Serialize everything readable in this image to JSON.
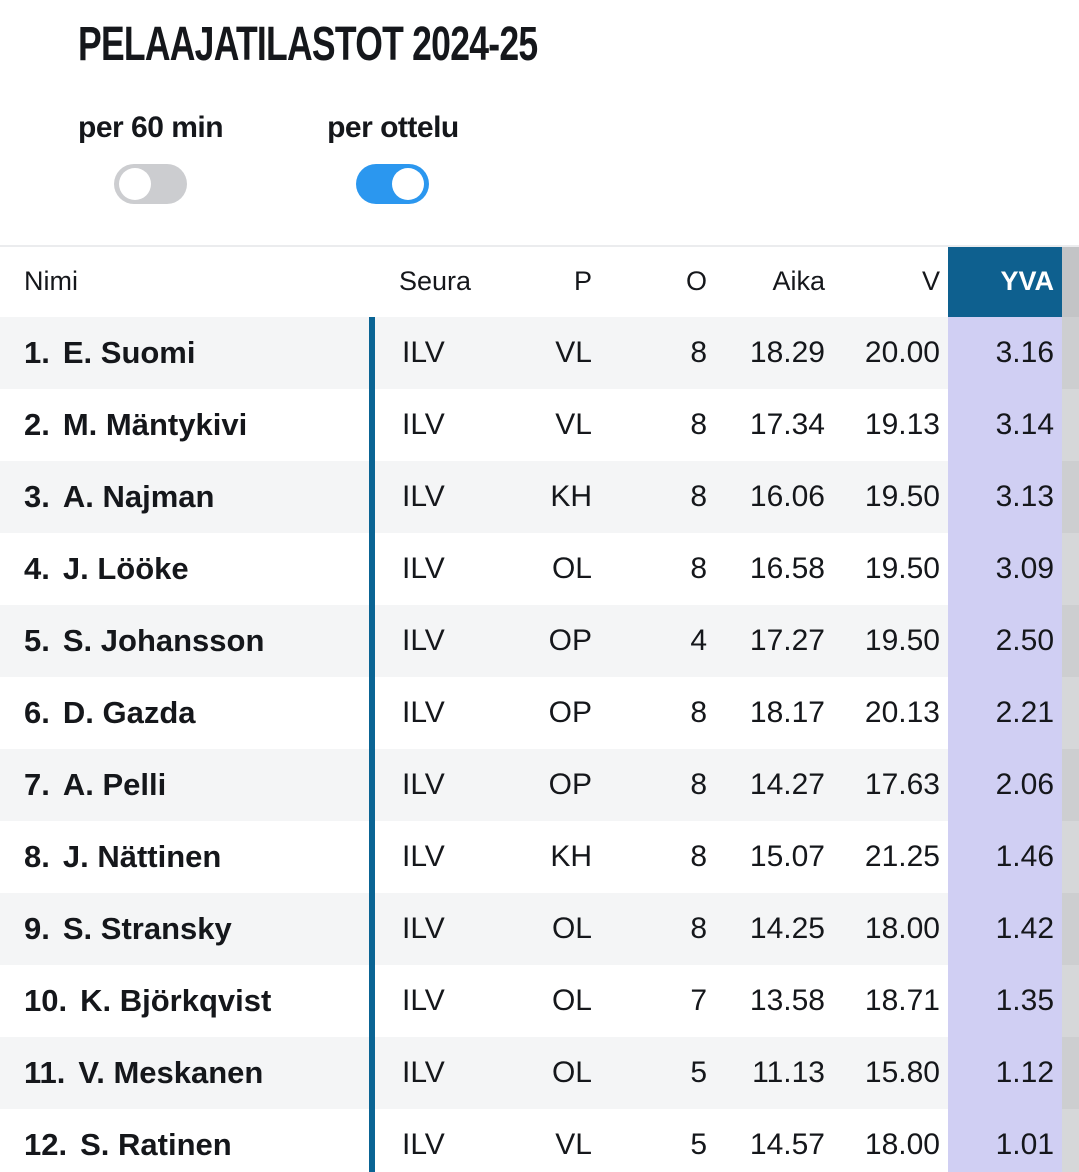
{
  "title": "PELAAJATILASTOT 2024-25",
  "toggles": [
    {
      "label": "per 60 min",
      "state": "off"
    },
    {
      "label": "per ottelu",
      "state": "on"
    }
  ],
  "table": {
    "columns": [
      "Nimi",
      "Seura",
      "P",
      "O",
      "Aika",
      "V",
      "YVA"
    ],
    "highlight_column": "YVA",
    "rows": [
      {
        "rank": "1.",
        "name": "E. Suomi",
        "seura": "ILV",
        "p": "VL",
        "o": "8",
        "aika": "18.29",
        "v": "20.00",
        "yva": "3.16"
      },
      {
        "rank": "2.",
        "name": "M. Mäntykivi",
        "seura": "ILV",
        "p": "VL",
        "o": "8",
        "aika": "17.34",
        "v": "19.13",
        "yva": "3.14"
      },
      {
        "rank": "3.",
        "name": "A. Najman",
        "seura": "ILV",
        "p": "KH",
        "o": "8",
        "aika": "16.06",
        "v": "19.50",
        "yva": "3.13"
      },
      {
        "rank": "4.",
        "name": "J. Lööke",
        "seura": "ILV",
        "p": "OL",
        "o": "8",
        "aika": "16.58",
        "v": "19.50",
        "yva": "3.09"
      },
      {
        "rank": "5.",
        "name": "S. Johansson",
        "seura": "ILV",
        "p": "OP",
        "o": "4",
        "aika": "17.27",
        "v": "19.50",
        "yva": "2.50"
      },
      {
        "rank": "6.",
        "name": "D. Gazda",
        "seura": "ILV",
        "p": "OP",
        "o": "8",
        "aika": "18.17",
        "v": "20.13",
        "yva": "2.21"
      },
      {
        "rank": "7.",
        "name": "A. Pelli",
        "seura": "ILV",
        "p": "OP",
        "o": "8",
        "aika": "14.27",
        "v": "17.63",
        "yva": "2.06"
      },
      {
        "rank": "8.",
        "name": "J. Nättinen",
        "seura": "ILV",
        "p": "KH",
        "o": "8",
        "aika": "15.07",
        "v": "21.25",
        "yva": "1.46"
      },
      {
        "rank": "9.",
        "name": "S. Stransky",
        "seura": "ILV",
        "p": "OL",
        "o": "8",
        "aika": "14.25",
        "v": "18.00",
        "yva": "1.42"
      },
      {
        "rank": "10.",
        "name": "K. Björkqvist",
        "seura": "ILV",
        "p": "OL",
        "o": "7",
        "aika": "13.58",
        "v": "18.71",
        "yva": "1.35"
      },
      {
        "rank": "11.",
        "name": "V. Meskanen",
        "seura": "ILV",
        "p": "OL",
        "o": "5",
        "aika": "11.13",
        "v": "15.80",
        "yva": "1.12"
      },
      {
        "rank": "12.",
        "name": "S. Ratinen",
        "seura": "ILV",
        "p": "VL",
        "o": "5",
        "aika": "14.57",
        "v": "18.00",
        "yva": "1.01"
      }
    ]
  },
  "colors": {
    "blue_header": "#0e608f",
    "divider": "#0a6494",
    "toggle_on": "#2b97ef",
    "toggle_off": "#cccdd0",
    "row_alt": "#f4f5f6",
    "yva_cell": "#d0cff3",
    "edge_header": "#c3c4c6",
    "edge_odd": "#cdced0",
    "edge_even": "#d6d7d9",
    "text": "#15171b"
  }
}
